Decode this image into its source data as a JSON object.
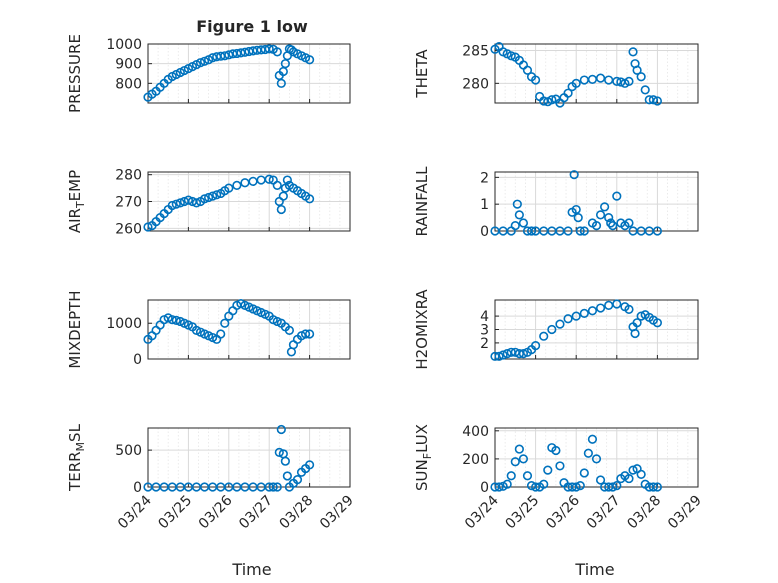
{
  "figure": {
    "title": "Figure 1 low",
    "x_tick_labels": [
      "03/24",
      "03/25",
      "03/26",
      "03/27",
      "03/28",
      "03/29"
    ],
    "x_label": "Time"
  },
  "colors": {
    "marker": "#0072bd",
    "axes": "#262626",
    "grid": "#d9d9d9"
  },
  "chart_data": [
    {
      "type": "scatter",
      "ylabel": "PRESSURE",
      "xlim": [
        0,
        5
      ],
      "ylim": [
        700,
        1000
      ],
      "grid": true,
      "yticks": [
        800,
        900,
        1000
      ],
      "x": [
        0,
        0.1,
        0.2,
        0.3,
        0.4,
        0.5,
        0.6,
        0.7,
        0.8,
        0.9,
        1.0,
        1.1,
        1.2,
        1.3,
        1.4,
        1.5,
        1.6,
        1.7,
        1.8,
        1.9,
        2.0,
        2.1,
        2.2,
        2.3,
        2.4,
        2.5,
        2.6,
        2.7,
        2.8,
        2.9,
        3.0,
        3.1,
        3.2,
        3.25,
        3.3,
        3.35,
        3.4,
        3.45,
        3.5,
        3.55,
        3.6,
        3.7,
        3.8,
        3.9,
        4.0
      ],
      "y": [
        730,
        745,
        760,
        780,
        800,
        820,
        835,
        845,
        855,
        865,
        875,
        885,
        895,
        905,
        912,
        920,
        930,
        935,
        938,
        940,
        945,
        950,
        952,
        955,
        958,
        962,
        965,
        968,
        970,
        972,
        975,
        973,
        960,
        840,
        800,
        860,
        900,
        940,
        975,
        970,
        960,
        950,
        940,
        930,
        920
      ]
    },
    {
      "type": "scatter",
      "ylabel": "THETA",
      "xlim": [
        0,
        5
      ],
      "ylim": [
        277,
        286
      ],
      "grid": true,
      "yticks": [
        280,
        285
      ],
      "x": [
        0,
        0.1,
        0.2,
        0.3,
        0.4,
        0.5,
        0.6,
        0.7,
        0.8,
        0.9,
        1.0,
        1.1,
        1.2,
        1.3,
        1.4,
        1.5,
        1.6,
        1.7,
        1.8,
        1.9,
        2.0,
        2.2,
        2.4,
        2.6,
        2.8,
        3.0,
        3.1,
        3.2,
        3.3,
        3.4,
        3.45,
        3.5,
        3.6,
        3.7,
        3.8,
        3.9,
        4.0
      ],
      "y": [
        285.2,
        285.6,
        284.8,
        284.5,
        284.2,
        284.0,
        283.5,
        282.8,
        282.0,
        281.0,
        280.5,
        278.0,
        277.3,
        277.2,
        277.5,
        277.6,
        277.0,
        277.8,
        278.5,
        279.5,
        280.0,
        280.5,
        280.6,
        280.8,
        280.5,
        280.3,
        280.2,
        280.0,
        280.3,
        284.8,
        283.0,
        282.0,
        281.0,
        279.0,
        277.5,
        277.5,
        277.3
      ]
    },
    {
      "type": "scatter",
      "ylabel": "AIR_TEMP",
      "xlim": [
        0,
        5
      ],
      "ylim": [
        259,
        281
      ],
      "grid": true,
      "yticks": [
        260,
        270,
        280
      ],
      "x": [
        0,
        0.1,
        0.2,
        0.3,
        0.4,
        0.5,
        0.6,
        0.7,
        0.8,
        0.9,
        1.0,
        1.1,
        1.2,
        1.3,
        1.4,
        1.5,
        1.6,
        1.7,
        1.8,
        1.9,
        2.0,
        2.2,
        2.4,
        2.6,
        2.8,
        3.0,
        3.1,
        3.2,
        3.25,
        3.3,
        3.35,
        3.4,
        3.45,
        3.5,
        3.6,
        3.7,
        3.8,
        3.9,
        4.0
      ],
      "y": [
        260.5,
        261,
        262.5,
        264,
        265.5,
        267,
        268.5,
        269,
        269.5,
        270,
        270.5,
        270,
        269.5,
        270,
        271,
        271.5,
        272,
        272.5,
        273,
        274,
        275,
        276,
        277,
        277.5,
        278,
        278.3,
        278,
        276,
        270,
        267,
        272,
        275,
        278,
        276,
        275,
        274,
        273,
        272,
        271
      ]
    },
    {
      "type": "scatter",
      "ylabel": "RAINFALL",
      "xlim": [
        0,
        5
      ],
      "ylim": [
        0,
        2.2
      ],
      "grid": true,
      "yticks": [
        0,
        1,
        2
      ],
      "x": [
        0,
        0.2,
        0.4,
        0.5,
        0.55,
        0.6,
        0.7,
        0.8,
        0.9,
        1.0,
        1.2,
        1.4,
        1.6,
        1.8,
        1.9,
        1.95,
        2.0,
        2.05,
        2.1,
        2.2,
        2.4,
        2.5,
        2.6,
        2.7,
        2.8,
        2.85,
        2.9,
        3.0,
        3.1,
        3.2,
        3.3,
        3.4,
        3.6,
        3.8,
        4.0
      ],
      "y": [
        0,
        0,
        0,
        0.2,
        1.0,
        0.6,
        0.3,
        0,
        0,
        0,
        0,
        0,
        0,
        0,
        0.7,
        2.1,
        0.8,
        0.5,
        0,
        0,
        0.3,
        0.2,
        0.6,
        0.9,
        0.5,
        0.3,
        0.2,
        1.3,
        0.3,
        0.2,
        0.3,
        0,
        0,
        0,
        0
      ]
    },
    {
      "type": "scatter",
      "ylabel": "MIXDEPTH",
      "xlim": [
        0,
        5
      ],
      "ylim": [
        0,
        1650
      ],
      "grid": true,
      "yticks": [
        0,
        1000
      ],
      "x": [
        0,
        0.1,
        0.2,
        0.3,
        0.4,
        0.5,
        0.6,
        0.7,
        0.8,
        0.9,
        1.0,
        1.1,
        1.2,
        1.3,
        1.4,
        1.5,
        1.6,
        1.7,
        1.8,
        1.9,
        2.0,
        2.1,
        2.2,
        2.3,
        2.4,
        2.5,
        2.6,
        2.7,
        2.8,
        2.9,
        3.0,
        3.1,
        3.2,
        3.3,
        3.4,
        3.5,
        3.55,
        3.6,
        3.7,
        3.8,
        3.9,
        4.0
      ],
      "y": [
        550,
        650,
        800,
        950,
        1100,
        1150,
        1100,
        1080,
        1050,
        1000,
        950,
        900,
        800,
        750,
        700,
        650,
        600,
        550,
        700,
        1000,
        1200,
        1350,
        1500,
        1550,
        1500,
        1450,
        1400,
        1350,
        1300,
        1250,
        1200,
        1100,
        1050,
        1000,
        900,
        800,
        200,
        400,
        550,
        650,
        700,
        700
      ]
    },
    {
      "type": "scatter",
      "ylabel": "H2OMIXRA",
      "xlim": [
        0,
        5
      ],
      "ylim": [
        0.8,
        5.2
      ],
      "grid": true,
      "yticks": [
        2,
        3,
        4
      ],
      "x": [
        0,
        0.1,
        0.2,
        0.3,
        0.4,
        0.5,
        0.6,
        0.7,
        0.8,
        0.9,
        1.0,
        1.2,
        1.4,
        1.6,
        1.8,
        2.0,
        2.2,
        2.4,
        2.6,
        2.8,
        3.0,
        3.2,
        3.3,
        3.4,
        3.45,
        3.5,
        3.6,
        3.7,
        3.8,
        3.9,
        4.0
      ],
      "y": [
        1.0,
        1.0,
        1.1,
        1.2,
        1.3,
        1.3,
        1.2,
        1.2,
        1.3,
        1.5,
        1.8,
        2.5,
        3.0,
        3.4,
        3.8,
        4.0,
        4.2,
        4.4,
        4.6,
        4.8,
        4.9,
        4.7,
        4.5,
        3.2,
        2.7,
        3.5,
        4.0,
        4.1,
        3.9,
        3.7,
        3.5
      ]
    },
    {
      "type": "scatter",
      "ylabel": "TERR_MSL",
      "xlim": [
        0,
        5
      ],
      "ylim": [
        0,
        800
      ],
      "grid": true,
      "yticks": [
        0,
        500
      ],
      "x": [
        0,
        0.2,
        0.4,
        0.6,
        0.8,
        1.0,
        1.2,
        1.4,
        1.6,
        1.8,
        2.0,
        2.2,
        2.4,
        2.6,
        2.8,
        3.0,
        3.1,
        3.2,
        3.25,
        3.3,
        3.35,
        3.4,
        3.45,
        3.5,
        3.6,
        3.7,
        3.8,
        3.9,
        4.0
      ],
      "y": [
        0,
        0,
        0,
        0,
        0,
        0,
        0,
        0,
        0,
        0,
        0,
        0,
        0,
        0,
        0,
        0,
        0,
        0,
        470,
        780,
        450,
        350,
        150,
        0,
        50,
        100,
        200,
        250,
        300
      ]
    },
    {
      "type": "scatter",
      "ylabel": "SUN_FLUX",
      "xlim": [
        0,
        5
      ],
      "ylim": [
        0,
        420
      ],
      "grid": true,
      "yticks": [
        0,
        200,
        400
      ],
      "x": [
        0,
        0.1,
        0.2,
        0.3,
        0.4,
        0.5,
        0.6,
        0.7,
        0.8,
        0.9,
        1.0,
        1.1,
        1.2,
        1.3,
        1.4,
        1.5,
        1.6,
        1.7,
        1.8,
        1.9,
        2.0,
        2.1,
        2.2,
        2.3,
        2.4,
        2.5,
        2.6,
        2.7,
        2.8,
        2.9,
        3.0,
        3.1,
        3.2,
        3.3,
        3.4,
        3.5,
        3.6,
        3.7,
        3.8,
        3.9,
        4.0
      ],
      "y": [
        0,
        0,
        5,
        20,
        80,
        180,
        270,
        200,
        80,
        10,
        0,
        0,
        20,
        120,
        280,
        260,
        150,
        30,
        0,
        0,
        0,
        10,
        100,
        240,
        340,
        200,
        50,
        0,
        0,
        0,
        10,
        60,
        80,
        60,
        120,
        130,
        90,
        20,
        0,
        0,
        0
      ]
    }
  ]
}
